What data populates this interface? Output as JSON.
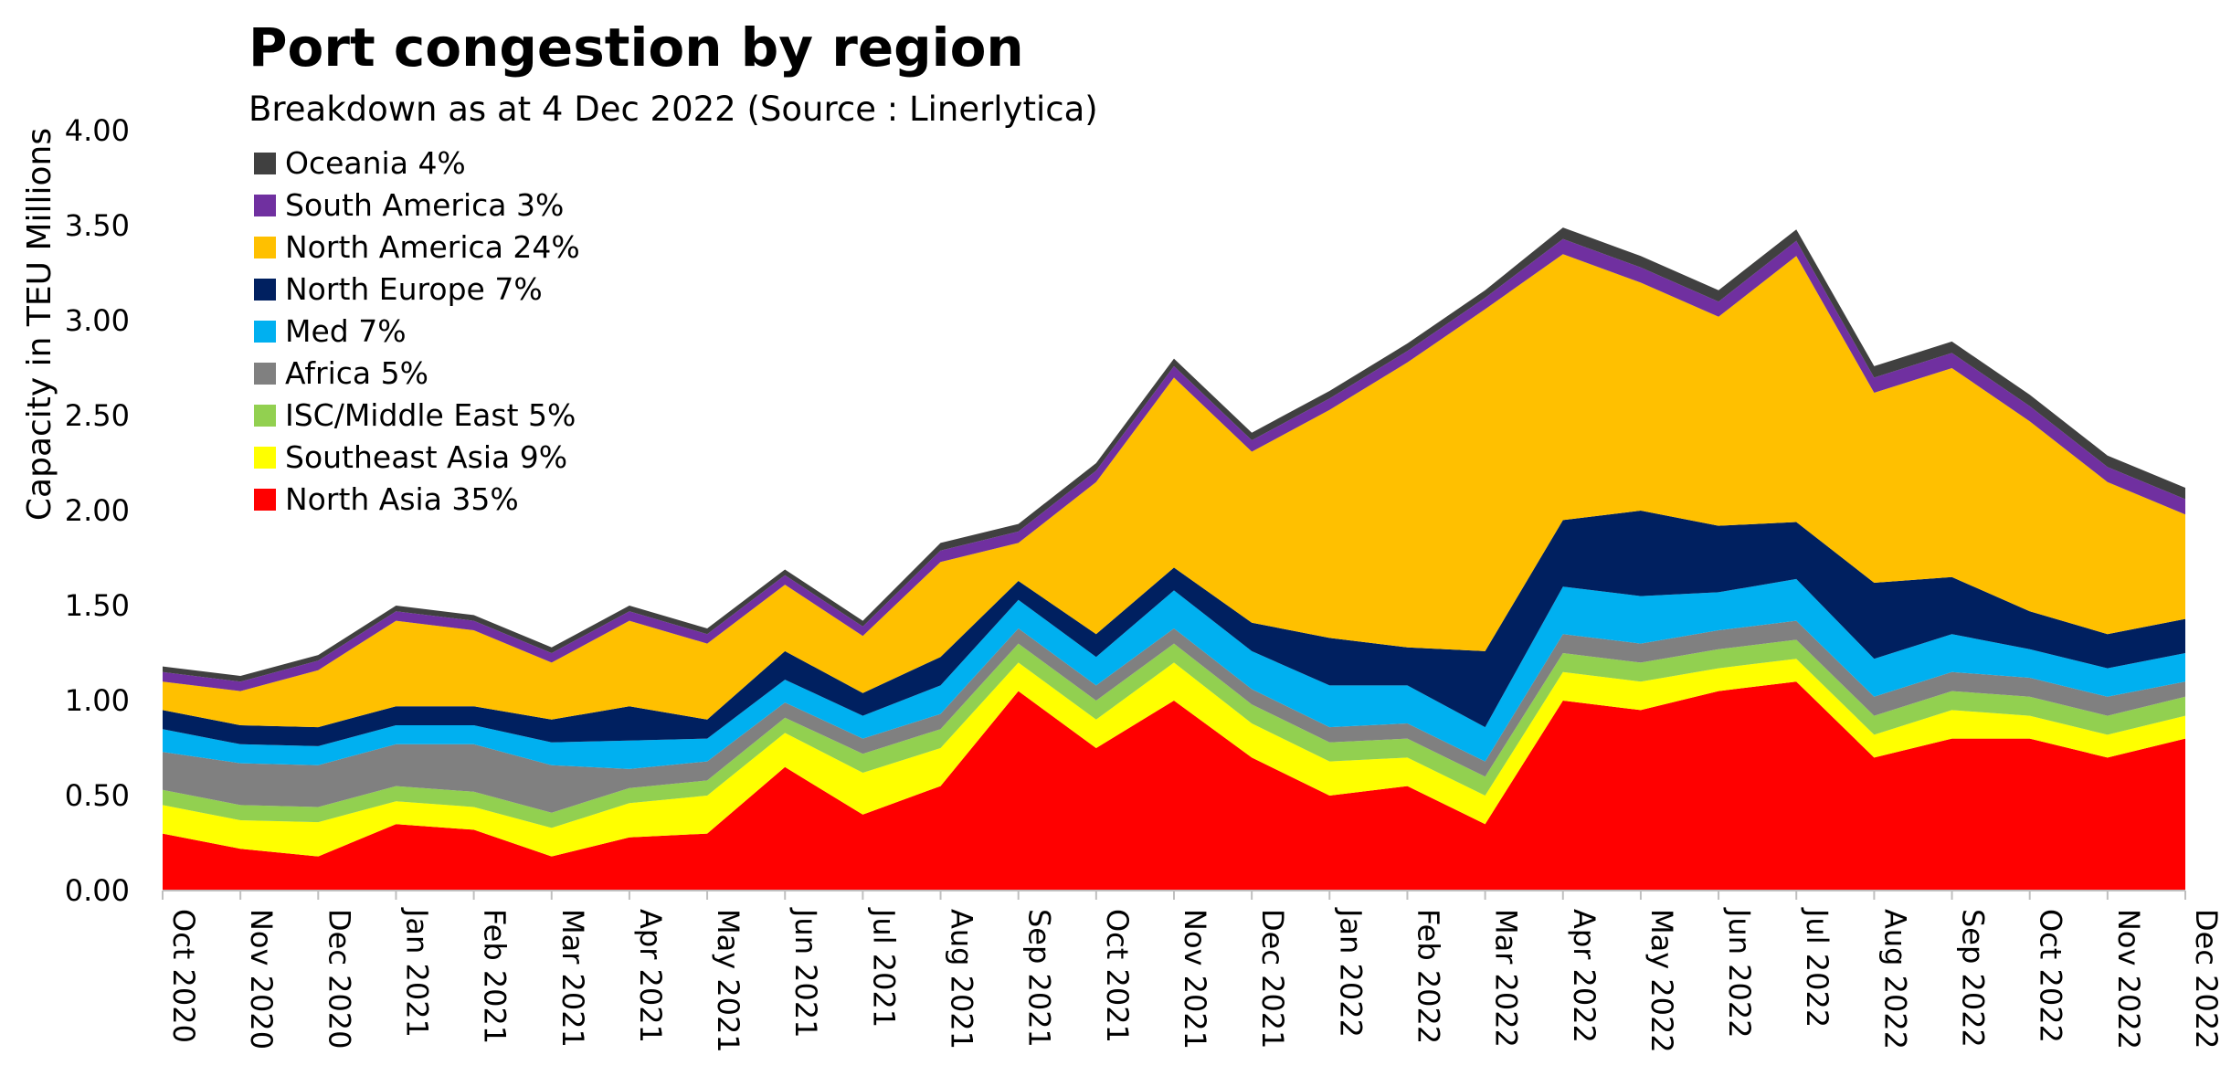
{
  "chart_data": {
    "type": "area",
    "stacked": true,
    "title": "Port congestion by region",
    "subtitle": "Breakdown as at 4 Dec 2022 (Source : Linerlytica)",
    "ylabel": "Capacity in TEU Millions",
    "xlabel": "",
    "ylim": [
      0,
      4.0
    ],
    "yticks": [
      "0.00",
      "0.50",
      "1.00",
      "1.50",
      "2.00",
      "2.50",
      "3.00",
      "3.50",
      "4.00"
    ],
    "grid": false,
    "legend_position": "top-left",
    "x": [
      "Oct 2020",
      "Nov 2020",
      "Dec 2020",
      "Jan 2021",
      "Feb 2021",
      "Mar 2021",
      "Apr 2021",
      "May 2021",
      "Jun 2021",
      "Jul 2021",
      "Aug 2021",
      "Sep 2021",
      "Oct 2021",
      "Nov 2021",
      "Dec 2021",
      "Jan 2022",
      "Feb 2022",
      "Mar 2022",
      "Apr 2022",
      "May 2022",
      "Jun 2022",
      "Jul 2022",
      "Aug 2022",
      "Sep 2022",
      "Oct 2022",
      "Nov 2022",
      "Dec 2022"
    ],
    "series": [
      {
        "name": "North Asia 35%",
        "color": "#FF0000",
        "values": [
          0.3,
          0.22,
          0.18,
          0.35,
          0.32,
          0.18,
          0.28,
          0.3,
          0.65,
          0.4,
          0.55,
          1.05,
          0.75,
          1.0,
          0.7,
          0.5,
          0.55,
          0.35,
          1.0,
          0.95,
          1.05,
          1.1,
          0.7,
          0.8,
          0.8,
          0.7,
          0.8
        ]
      },
      {
        "name": "Southeast Asia 9%",
        "color": "#FFFF00",
        "values": [
          0.15,
          0.15,
          0.18,
          0.12,
          0.12,
          0.15,
          0.18,
          0.2,
          0.18,
          0.22,
          0.2,
          0.15,
          0.15,
          0.2,
          0.18,
          0.18,
          0.15,
          0.15,
          0.15,
          0.15,
          0.12,
          0.12,
          0.12,
          0.15,
          0.12,
          0.12,
          0.12
        ]
      },
      {
        "name": "ISC/Middle East 5%",
        "color": "#92D050",
        "values": [
          0.08,
          0.08,
          0.08,
          0.08,
          0.08,
          0.08,
          0.08,
          0.08,
          0.08,
          0.1,
          0.1,
          0.1,
          0.1,
          0.1,
          0.1,
          0.1,
          0.1,
          0.1,
          0.1,
          0.1,
          0.1,
          0.1,
          0.1,
          0.1,
          0.1,
          0.1,
          0.1
        ]
      },
      {
        "name": "Africa 5%",
        "color": "#808080",
        "values": [
          0.2,
          0.22,
          0.22,
          0.22,
          0.25,
          0.25,
          0.1,
          0.1,
          0.08,
          0.08,
          0.08,
          0.08,
          0.08,
          0.08,
          0.08,
          0.08,
          0.08,
          0.08,
          0.1,
          0.1,
          0.1,
          0.1,
          0.1,
          0.1,
          0.1,
          0.1,
          0.08
        ]
      },
      {
        "name": "Med 7%",
        "color": "#00B0F0",
        "values": [
          0.12,
          0.1,
          0.1,
          0.1,
          0.1,
          0.12,
          0.15,
          0.12,
          0.12,
          0.12,
          0.15,
          0.15,
          0.15,
          0.2,
          0.2,
          0.22,
          0.2,
          0.18,
          0.25,
          0.25,
          0.2,
          0.22,
          0.2,
          0.2,
          0.15,
          0.15,
          0.15
        ]
      },
      {
        "name": "North Europe 7%",
        "color": "#002060",
        "values": [
          0.1,
          0.1,
          0.1,
          0.1,
          0.1,
          0.12,
          0.18,
          0.1,
          0.15,
          0.12,
          0.15,
          0.1,
          0.12,
          0.12,
          0.15,
          0.25,
          0.2,
          0.4,
          0.35,
          0.45,
          0.35,
          0.3,
          0.4,
          0.3,
          0.2,
          0.18,
          0.18
        ]
      },
      {
        "name": "North America 24%",
        "color": "#FFC000",
        "values": [
          0.15,
          0.18,
          0.3,
          0.45,
          0.4,
          0.3,
          0.45,
          0.4,
          0.35,
          0.3,
          0.5,
          0.2,
          0.8,
          1.0,
          0.9,
          1.2,
          1.5,
          1.8,
          1.4,
          1.2,
          1.1,
          1.4,
          1.0,
          1.1,
          1.0,
          0.8,
          0.55
        ]
      },
      {
        "name": "South America 3%",
        "color": "#7030A0",
        "values": [
          0.05,
          0.05,
          0.05,
          0.05,
          0.05,
          0.05,
          0.05,
          0.05,
          0.05,
          0.05,
          0.06,
          0.06,
          0.06,
          0.06,
          0.06,
          0.06,
          0.06,
          0.06,
          0.08,
          0.08,
          0.08,
          0.08,
          0.08,
          0.08,
          0.08,
          0.08,
          0.08
        ]
      },
      {
        "name": "Oceania 4%",
        "color": "#404040",
        "values": [
          0.03,
          0.03,
          0.03,
          0.03,
          0.03,
          0.03,
          0.03,
          0.03,
          0.03,
          0.03,
          0.04,
          0.04,
          0.04,
          0.04,
          0.04,
          0.04,
          0.04,
          0.04,
          0.06,
          0.06,
          0.06,
          0.06,
          0.06,
          0.06,
          0.06,
          0.06,
          0.06
        ]
      }
    ],
    "legend_order": [
      "Oceania 4%",
      "South America 3%",
      "North America 24%",
      "North Europe 7%",
      "Med 7%",
      "Africa 5%",
      "ISC/Middle East 5%",
      "Southeast Asia 9%",
      "North Asia 35%"
    ]
  }
}
